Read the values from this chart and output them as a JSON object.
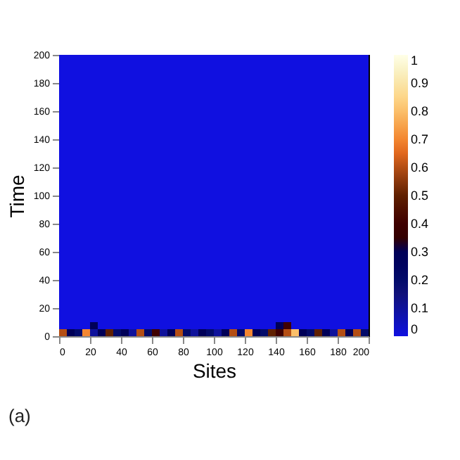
{
  "chart_data": {
    "type": "heatmap",
    "xlabel": "Sites",
    "ylabel": "Time",
    "annotations": [
      "(a)"
    ],
    "x": [
      2.5,
      7.5,
      12.5,
      17.5,
      22.5,
      27.5,
      32.5,
      37.5,
      42.5,
      47.5,
      52.5,
      57.5,
      62.5,
      67.5,
      72.5,
      77.5,
      82.5,
      87.5,
      92.5,
      97.5,
      102.5,
      107.5,
      112.5,
      117.5,
      122.5,
      127.5,
      132.5,
      137.5,
      142.5,
      147.5,
      152.5,
      157.5,
      162.5,
      167.5,
      172.5,
      177.5,
      182.5,
      187.5,
      192.5,
      197.5
    ],
    "y": [
      197.5,
      192.5,
      187.5,
      182.5,
      177.5,
      172.5,
      167.5,
      162.5,
      157.5,
      152.5,
      147.5,
      142.5,
      137.5,
      132.5,
      127.5,
      122.5,
      117.5,
      112.5,
      107.5,
      102.5,
      97.5,
      92.5,
      87.5,
      82.5,
      77.5,
      72.5,
      67.5,
      62.5,
      57.5,
      52.5,
      47.5,
      42.5,
      37.5,
      32.5,
      27.5,
      22.5,
      17.5,
      12.5,
      7.5,
      2.5
    ],
    "xlim": [
      0,
      200
    ],
    "xticks": [
      0,
      20,
      40,
      60,
      80,
      100,
      120,
      140,
      160,
      180,
      200
    ],
    "ylim": [
      0,
      200
    ],
    "yticks": [
      0,
      20,
      40,
      60,
      80,
      100,
      120,
      140,
      160,
      180,
      200
    ],
    "clim": [
      0,
      1
    ],
    "cticks": [
      0,
      0.1,
      0.2,
      0.3,
      0.4,
      0.5,
      0.6,
      0.7,
      0.8,
      0.9,
      1
    ],
    "cells": [
      [
        0,
        0,
        0,
        0,
        0,
        0,
        0,
        0,
        0,
        0,
        0,
        0,
        0,
        0,
        0,
        0,
        0,
        0,
        0,
        0,
        0,
        0,
        0,
        0,
        0,
        0,
        0,
        0,
        0,
        0,
        0,
        0,
        0,
        0,
        0,
        0,
        0,
        0,
        0,
        0
      ],
      [
        0,
        0,
        0,
        0,
        0,
        0,
        0,
        0,
        0,
        0,
        0,
        0,
        0,
        0,
        0,
        0,
        0,
        0,
        0,
        0,
        0,
        0,
        0,
        0,
        0,
        0,
        0,
        0,
        0,
        0,
        0,
        0,
        0,
        0,
        0,
        0,
        0,
        0,
        0,
        0
      ],
      [
        0,
        0,
        0,
        0,
        0,
        0,
        0,
        0,
        0,
        0,
        0,
        0,
        0,
        0,
        0,
        0,
        0,
        0,
        0,
        0,
        0,
        0,
        0,
        0,
        0,
        0,
        0,
        0,
        0,
        0,
        0,
        0,
        0,
        0,
        0,
        0,
        0,
        0,
        0,
        0
      ],
      [
        0,
        0,
        0,
        0,
        0,
        0,
        0,
        0,
        0,
        0,
        0,
        0,
        0,
        0,
        0,
        0,
        0,
        0,
        0,
        0,
        0,
        0,
        0,
        0,
        0,
        0,
        0,
        0,
        0,
        0,
        0,
        0,
        0,
        0,
        0,
        0,
        0,
        0,
        0,
        0
      ],
      [
        0,
        0,
        0,
        0,
        0,
        0,
        0,
        0,
        0,
        0,
        0,
        0,
        0,
        0,
        0,
        0,
        0,
        0,
        0,
        0,
        0,
        0,
        0,
        0,
        0,
        0,
        0,
        0,
        0,
        0,
        0,
        0,
        0,
        0,
        0,
        0,
        0,
        0,
        0,
        0
      ],
      [
        0,
        0,
        0,
        0,
        0,
        0,
        0,
        0,
        0,
        0,
        0,
        0,
        0,
        0,
        0,
        0,
        0,
        0,
        0,
        0,
        0,
        0,
        0,
        0,
        0,
        0,
        0,
        0,
        0,
        0,
        0,
        0,
        0,
        0,
        0,
        0,
        0,
        0,
        0,
        0
      ],
      [
        0,
        0,
        0,
        0,
        0,
        0,
        0,
        0,
        0,
        0,
        0,
        0,
        0,
        0,
        0,
        0,
        0,
        0,
        0,
        0,
        0,
        0,
        0,
        0,
        0,
        0,
        0,
        0,
        0,
        0,
        0,
        0,
        0,
        0,
        0,
        0,
        0,
        0,
        0,
        0
      ],
      [
        0,
        0,
        0,
        0,
        0,
        0,
        0,
        0,
        0,
        0,
        0,
        0,
        0,
        0,
        0,
        0,
        0,
        0,
        0,
        0,
        0,
        0,
        0,
        0,
        0,
        0,
        0,
        0,
        0,
        0,
        0,
        0,
        0,
        0,
        0,
        0,
        0,
        0,
        0,
        0
      ],
      [
        0,
        0,
        0,
        0,
        0,
        0,
        0,
        0,
        0,
        0,
        0,
        0,
        0,
        0,
        0,
        0,
        0,
        0,
        0,
        0,
        0,
        0,
        0,
        0,
        0,
        0,
        0,
        0,
        0,
        0,
        0,
        0,
        0,
        0,
        0,
        0,
        0,
        0,
        0,
        0
      ],
      [
        0,
        0,
        0,
        0,
        0,
        0,
        0,
        0,
        0,
        0,
        0,
        0,
        0,
        0,
        0,
        0,
        0,
        0,
        0,
        0,
        0,
        0,
        0,
        0,
        0,
        0,
        0,
        0,
        0,
        0,
        0,
        0,
        0,
        0,
        0,
        0,
        0,
        0,
        0,
        0
      ],
      [
        0,
        0,
        0,
        0,
        0,
        0,
        0,
        0,
        0,
        0,
        0,
        0,
        0,
        0,
        0,
        0,
        0,
        0,
        0,
        0,
        0,
        0,
        0,
        0,
        0,
        0,
        0,
        0,
        0,
        0,
        0,
        0,
        0,
        0,
        0,
        0,
        0,
        0,
        0,
        0
      ],
      [
        0,
        0,
        0,
        0,
        0,
        0,
        0,
        0,
        0,
        0,
        0,
        0,
        0,
        0,
        0,
        0,
        0,
        0,
        0,
        0,
        0,
        0,
        0,
        0,
        0,
        0,
        0,
        0,
        0,
        0,
        0,
        0,
        0,
        0,
        0,
        0,
        0,
        0,
        0,
        0
      ],
      [
        0,
        0,
        0,
        0,
        0,
        0,
        0,
        0,
        0,
        0,
        0,
        0,
        0,
        0,
        0,
        0,
        0,
        0,
        0,
        0,
        0,
        0,
        0,
        0,
        0,
        0,
        0,
        0,
        0,
        0,
        0,
        0,
        0,
        0,
        0,
        0,
        0,
        0,
        0,
        0
      ],
      [
        0,
        0,
        0,
        0,
        0,
        0,
        0,
        0,
        0,
        0,
        0,
        0,
        0,
        0,
        0,
        0,
        0,
        0,
        0,
        0,
        0,
        0,
        0,
        0,
        0,
        0,
        0,
        0,
        0,
        0,
        0,
        0,
        0,
        0,
        0,
        0,
        0,
        0,
        0,
        0
      ],
      [
        0,
        0,
        0,
        0,
        0,
        0,
        0,
        0,
        0,
        0,
        0,
        0,
        0,
        0,
        0,
        0,
        0,
        0,
        0,
        0,
        0,
        0,
        0,
        0,
        0,
        0,
        0,
        0,
        0,
        0,
        0,
        0,
        0,
        0,
        0,
        0,
        0,
        0,
        0,
        0
      ],
      [
        0,
        0,
        0,
        0,
        0,
        0,
        0,
        0,
        0,
        0,
        0,
        0,
        0,
        0,
        0,
        0,
        0,
        0,
        0,
        0,
        0,
        0,
        0,
        0,
        0,
        0,
        0,
        0,
        0,
        0,
        0,
        0,
        0,
        0,
        0,
        0,
        0,
        0,
        0,
        0
      ],
      [
        0,
        0,
        0,
        0,
        0,
        0,
        0,
        0,
        0,
        0,
        0,
        0,
        0,
        0,
        0,
        0,
        0,
        0,
        0,
        0,
        0,
        0,
        0,
        0,
        0,
        0,
        0,
        0,
        0,
        0,
        0,
        0,
        0,
        0,
        0,
        0,
        0,
        0,
        0,
        0
      ],
      [
        0,
        0,
        0,
        0,
        0,
        0,
        0,
        0,
        0,
        0,
        0,
        0,
        0,
        0,
        0,
        0,
        0,
        0,
        0,
        0,
        0,
        0,
        0,
        0,
        0,
        0,
        0,
        0,
        0,
        0,
        0,
        0,
        0,
        0,
        0,
        0,
        0,
        0,
        0,
        0
      ],
      [
        0,
        0,
        0,
        0,
        0,
        0,
        0,
        0,
        0,
        0,
        0,
        0,
        0,
        0,
        0,
        0,
        0,
        0,
        0,
        0,
        0,
        0,
        0,
        0,
        0,
        0,
        0,
        0,
        0,
        0,
        0,
        0,
        0,
        0,
        0,
        0,
        0,
        0,
        0,
        0
      ],
      [
        0,
        0,
        0,
        0,
        0,
        0,
        0,
        0,
        0,
        0,
        0,
        0,
        0,
        0,
        0,
        0,
        0,
        0,
        0,
        0,
        0,
        0,
        0,
        0,
        0,
        0,
        0,
        0,
        0,
        0,
        0,
        0,
        0,
        0,
        0,
        0,
        0,
        0,
        0,
        0
      ],
      [
        0,
        0,
        0,
        0,
        0,
        0,
        0,
        0,
        0,
        0,
        0,
        0,
        0,
        0,
        0,
        0,
        0,
        0,
        0,
        0,
        0,
        0,
        0,
        0,
        0,
        0,
        0,
        0,
        0,
        0,
        0,
        0,
        0,
        0,
        0,
        0,
        0,
        0,
        0,
        0
      ],
      [
        0,
        0,
        0,
        0,
        0,
        0,
        0,
        0,
        0,
        0,
        0,
        0,
        0,
        0,
        0,
        0,
        0,
        0,
        0,
        0,
        0,
        0,
        0,
        0,
        0,
        0,
        0,
        0,
        0,
        0,
        0,
        0,
        0,
        0,
        0,
        0,
        0,
        0,
        0,
        0
      ],
      [
        0,
        0,
        0,
        0,
        0,
        0,
        0,
        0,
        0,
        0,
        0,
        0,
        0,
        0,
        0,
        0,
        0,
        0,
        0,
        0,
        0,
        0,
        0,
        0,
        0,
        0,
        0,
        0,
        0,
        0,
        0,
        0,
        0,
        0,
        0,
        0,
        0,
        0,
        0,
        0
      ],
      [
        0,
        0,
        0,
        0,
        0,
        0,
        0,
        0,
        0,
        0,
        0,
        0,
        0,
        0,
        0,
        0,
        0,
        0,
        0,
        0,
        0,
        0,
        0,
        0,
        0,
        0,
        0,
        0,
        0,
        0,
        0,
        0,
        0,
        0,
        0,
        0,
        0,
        0,
        0,
        0
      ],
      [
        0,
        0,
        0,
        0,
        0,
        0,
        0,
        0,
        0,
        0,
        0,
        0,
        0,
        0,
        0,
        0,
        0,
        0,
        0,
        0,
        0,
        0,
        0,
        0,
        0,
        0,
        0,
        0,
        0,
        0,
        0,
        0,
        0,
        0,
        0,
        0,
        0,
        0,
        0,
        0
      ],
      [
        0,
        0,
        0,
        0,
        0,
        0,
        0,
        0,
        0,
        0,
        0,
        0,
        0,
        0,
        0,
        0,
        0,
        0,
        0,
        0,
        0,
        0,
        0,
        0,
        0,
        0,
        0,
        0,
        0,
        0,
        0,
        0,
        0,
        0,
        0,
        0,
        0,
        0,
        0,
        0
      ],
      [
        0,
        0,
        0,
        0,
        0,
        0,
        0,
        0,
        0,
        0,
        0,
        0,
        0,
        0,
        0,
        0,
        0,
        0,
        0,
        0,
        0,
        0,
        0,
        0,
        0,
        0,
        0,
        0,
        0,
        0,
        0,
        0,
        0,
        0,
        0,
        0,
        0,
        0,
        0,
        0
      ],
      [
        0,
        0,
        0,
        0,
        0,
        0,
        0,
        0,
        0,
        0,
        0,
        0,
        0,
        0,
        0,
        0,
        0,
        0,
        0,
        0,
        0,
        0,
        0,
        0,
        0,
        0,
        0,
        0,
        0,
        0,
        0,
        0,
        0,
        0,
        0,
        0,
        0,
        0,
        0,
        0
      ],
      [
        0,
        0,
        0,
        0,
        0,
        0,
        0,
        0,
        0,
        0,
        0,
        0,
        0,
        0,
        0,
        0,
        0,
        0,
        0,
        0,
        0,
        0,
        0,
        0,
        0,
        0,
        0,
        0,
        0,
        0,
        0,
        0,
        0,
        0,
        0,
        0,
        0,
        0,
        0,
        0
      ],
      [
        0,
        0,
        0,
        0,
        0,
        0,
        0,
        0,
        0,
        0,
        0,
        0,
        0,
        0,
        0,
        0,
        0,
        0,
        0,
        0,
        0,
        0,
        0,
        0,
        0,
        0,
        0,
        0,
        0,
        0,
        0,
        0,
        0,
        0,
        0,
        0,
        0,
        0,
        0,
        0
      ],
      [
        0,
        0,
        0,
        0,
        0,
        0,
        0,
        0,
        0,
        0,
        0,
        0,
        0,
        0,
        0,
        0,
        0,
        0,
        0,
        0,
        0,
        0,
        0,
        0,
        0,
        0,
        0,
        0,
        0,
        0,
        0,
        0,
        0,
        0,
        0,
        0,
        0,
        0,
        0,
        0
      ],
      [
        0,
        0,
        0,
        0,
        0,
        0,
        0,
        0,
        0,
        0,
        0,
        0,
        0,
        0,
        0,
        0,
        0,
        0,
        0,
        0,
        0,
        0,
        0,
        0,
        0,
        0,
        0,
        0,
        0,
        0,
        0,
        0,
        0,
        0,
        0,
        0,
        0,
        0,
        0,
        0
      ],
      [
        0,
        0,
        0,
        0,
        0,
        0,
        0,
        0,
        0,
        0,
        0,
        0,
        0,
        0,
        0,
        0,
        0,
        0,
        0,
        0,
        0,
        0,
        0,
        0,
        0,
        0,
        0,
        0,
        0,
        0,
        0,
        0,
        0,
        0,
        0,
        0,
        0,
        0,
        0,
        0
      ],
      [
        0,
        0,
        0,
        0,
        0,
        0,
        0,
        0,
        0,
        0,
        0,
        0,
        0,
        0,
        0,
        0,
        0,
        0,
        0,
        0,
        0,
        0,
        0,
        0,
        0,
        0,
        0,
        0,
        0,
        0,
        0,
        0,
        0,
        0,
        0,
        0,
        0,
        0,
        0,
        0
      ],
      [
        0,
        0,
        0,
        0,
        0,
        0,
        0,
        0,
        0,
        0,
        0,
        0,
        0,
        0,
        0,
        0,
        0,
        0,
        0,
        0,
        0,
        0,
        0,
        0,
        0,
        0,
        0,
        0,
        0,
        0,
        0,
        0,
        0,
        0,
        0,
        0,
        0,
        0,
        0,
        0
      ],
      [
        0,
        0,
        0,
        0,
        0,
        0,
        0,
        0,
        0,
        0,
        0,
        0,
        0,
        0,
        0,
        0,
        0,
        0,
        0,
        0,
        0,
        0,
        0,
        0,
        0,
        0,
        0,
        0,
        0,
        0,
        0,
        0,
        0,
        0,
        0,
        0,
        0,
        0,
        0,
        0
      ],
      [
        0,
        0,
        0,
        0,
        0,
        0,
        0,
        0,
        0,
        0,
        0,
        0,
        0,
        0,
        0,
        0,
        0,
        0,
        0,
        0,
        0,
        0,
        0,
        0,
        0,
        0,
        0,
        0,
        0,
        0,
        0,
        0,
        0,
        0,
        0,
        0,
        0,
        0,
        0,
        0
      ],
      [
        0,
        0,
        0,
        0,
        0,
        0,
        0,
        0,
        0,
        0,
        0,
        0,
        0,
        0,
        0,
        0,
        0,
        0,
        0,
        0,
        0,
        0,
        0,
        0,
        0,
        0,
        0,
        0,
        0,
        0,
        0,
        0,
        0,
        0,
        0,
        0,
        0,
        0,
        0,
        0
      ],
      [
        0,
        0,
        0,
        0,
        0.3,
        0,
        0,
        0,
        0,
        0,
        0,
        0,
        0,
        0,
        0,
        0,
        0,
        0,
        0,
        0,
        0,
        0,
        0,
        0,
        0,
        0,
        0,
        0,
        0.3,
        0.4,
        0,
        0,
        0,
        0,
        0,
        0,
        0,
        0,
        0,
        0
      ],
      [
        0.6,
        0.3,
        0.2,
        0.7,
        0.1,
        0.3,
        0.5,
        0.2,
        0.3,
        0.1,
        0.6,
        0.2,
        0.4,
        0.1,
        0.3,
        0.6,
        0.2,
        0.1,
        0.3,
        0.2,
        0.1,
        0.3,
        0.6,
        0.2,
        0.7,
        0.3,
        0.2,
        0.5,
        0.4,
        0.6,
        0.8,
        0.3,
        0.2,
        0.5,
        0.3,
        0.1,
        0.6,
        0.3,
        0.6,
        0.2
      ]
    ]
  }
}
